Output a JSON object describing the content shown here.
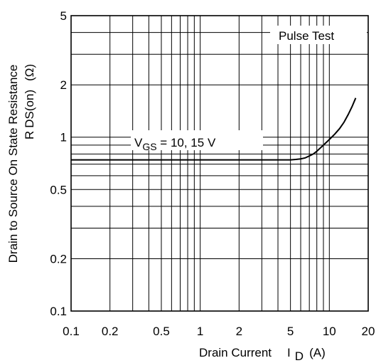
{
  "chart_data": {
    "type": "line",
    "x_scale": "log",
    "y_scale": "log",
    "xlim": [
      0.1,
      20
    ],
    "ylim": [
      0.1,
      5
    ],
    "x_ticks": [
      0.1,
      0.2,
      0.5,
      1,
      2,
      5,
      10,
      20
    ],
    "x_tick_labels": [
      "0.1",
      "0.2",
      "0.5",
      "1",
      "2",
      "5",
      "10",
      "20"
    ],
    "y_ticks": [
      0.1,
      0.2,
      0.5,
      1,
      2,
      5
    ],
    "y_tick_labels": [
      "0.1",
      "0.2",
      "0.5",
      "1",
      "2",
      "5"
    ],
    "grid": true,
    "xlabel": {
      "main": "Drain Current",
      "symbol": "I",
      "sub": "D",
      "unit": "(A)"
    },
    "ylabel": {
      "line1": "Drain to Source On State Resistance",
      "symbol": "R",
      "sub": "DS(on)",
      "unit": "(Ω)"
    },
    "annotations": {
      "pulse_test": "Pulse Test",
      "vgs": {
        "symbol": "V",
        "sub": "GS",
        "text": " = 10, 15 V"
      }
    },
    "series": [
      {
        "x": [
          0.1,
          0.5,
          1,
          2,
          3,
          4,
          5,
          5.5,
          6,
          6.5,
          7,
          7.5,
          8,
          9,
          10,
          11,
          12,
          13,
          14,
          15,
          16
        ],
        "y": [
          0.74,
          0.74,
          0.74,
          0.74,
          0.74,
          0.74,
          0.74,
          0.745,
          0.75,
          0.76,
          0.78,
          0.8,
          0.83,
          0.9,
          0.97,
          1.04,
          1.12,
          1.22,
          1.35,
          1.5,
          1.68
        ]
      }
    ]
  }
}
